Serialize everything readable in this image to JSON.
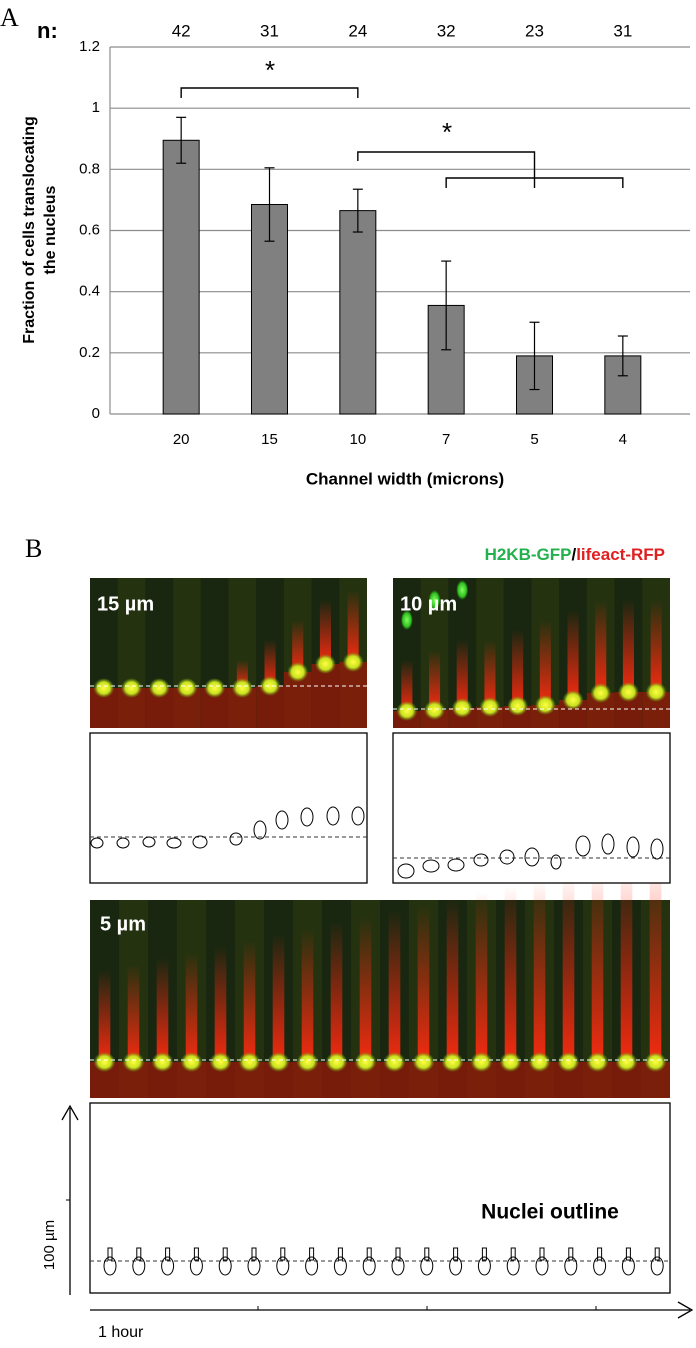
{
  "chart_data": {
    "type": "bar",
    "panel_label": "A",
    "n_label": "n:",
    "n_values": [
      42,
      31,
      24,
      32,
      23,
      31
    ],
    "categories": [
      "20",
      "15",
      "10",
      "7",
      "5",
      "4"
    ],
    "values": [
      0.895,
      0.685,
      0.665,
      0.355,
      0.19,
      0.19
    ],
    "errors": [
      0.075,
      0.12,
      0.07,
      0.145,
      0.11,
      0.065
    ],
    "color": "#808080",
    "ylim": [
      0,
      1.2
    ],
    "yticks": [
      0,
      0.2,
      0.4,
      0.6,
      0.8,
      1,
      1.2
    ],
    "grid": true,
    "y_label": [
      "Fraction of cells translocating",
      "the nucleus"
    ],
    "x_label": "Channel width (microns)",
    "annotations": [
      "*",
      "*"
    ]
  },
  "panel_b": {
    "label": "B",
    "legend_gfp": "H2KB-GFP",
    "legend_slash": "/",
    "legend_rfp": "lifeact-RFP",
    "panels": [
      "15 µm",
      "10 µm",
      "5 µm"
    ],
    "outline_label": "Nuclei outline",
    "y_axis_label": "100 µm",
    "x_axis_label": "1 hour"
  }
}
